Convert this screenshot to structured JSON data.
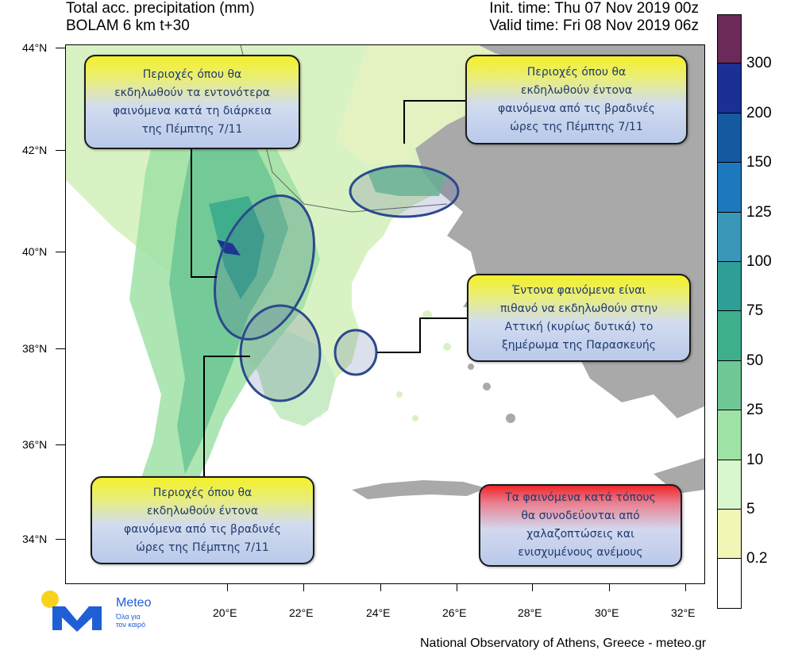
{
  "header": {
    "title_line1": "Total acc. precipitation (mm)",
    "title_line2": "BOLAM 6 km t+30",
    "init_time": "Init. time: Thu 07 Nov 2019 00z",
    "valid_time": "Valid time: Fri 08 Nov 2019 06z"
  },
  "map": {
    "lat_labels": [
      "44°N",
      "42°N",
      "40°N",
      "38°N",
      "36°N",
      "34°N"
    ],
    "lon_labels": [
      "20°E",
      "22°E",
      "24°E",
      "26°E",
      "28°E",
      "30°E",
      "32°E"
    ],
    "colors": {
      "sea": "#ffffff",
      "outside_land": "#a9a9a9",
      "border": "#666666"
    }
  },
  "callouts": [
    {
      "id": "nw",
      "lines": [
        "Περιοχές όπου θα",
        "εκδηλωθούν τα εντονότερα",
        "φαινόμενα κατά τη διάρκεια",
        "της Πέμπτης 7/11"
      ]
    },
    {
      "id": "ne",
      "lines": [
        "Περιοχές όπου θα",
        "εκδηλωθούν έντονα",
        "φαινόμενα από τις βραδινές",
        "ώρες της Πέμπτης 7/11"
      ]
    },
    {
      "id": "east",
      "lines": [
        "Έντονα φαινόμενα είναι",
        "πιθανό να εκδηλωθούν στην",
        "Αττική (κυρίως δυτικά) το",
        "ξημέρωμα της Παρασκευής"
      ]
    },
    {
      "id": "sw",
      "lines": [
        "Περιοχές όπου θα",
        "εκδηλωθούν έντονα",
        "φαινόμενα από τις βραδινές",
        "ώρες της Πέμπτης 7/11"
      ]
    },
    {
      "id": "se",
      "lines": [
        "Τα φαινόμενα κατά τόπους",
        "θα συνοδεύονται από",
        "χαλαζοπτώσεις και",
        "ενισχυμένους ανέμους"
      ]
    }
  ],
  "colorbar": {
    "levels": [
      "300",
      "200",
      "150",
      "125",
      "100",
      "75",
      "50",
      "25",
      "10",
      "5",
      "0.2"
    ],
    "colors": [
      "#6b2a5a",
      "#1c2f93",
      "#155aa0",
      "#1e78bd",
      "#3a97b8",
      "#2e9e96",
      "#3fae8c",
      "#6ec795",
      "#9fe2a6",
      "#d9f7cf",
      "#f1f6b6",
      "#ffffff"
    ]
  },
  "logo": {
    "name": "Meteo",
    "tagline_line1": "Όλα για",
    "tagline_line2": "τον καιρό"
  },
  "footer": "National Observatory of Athens, Greece - meteo.gr"
}
